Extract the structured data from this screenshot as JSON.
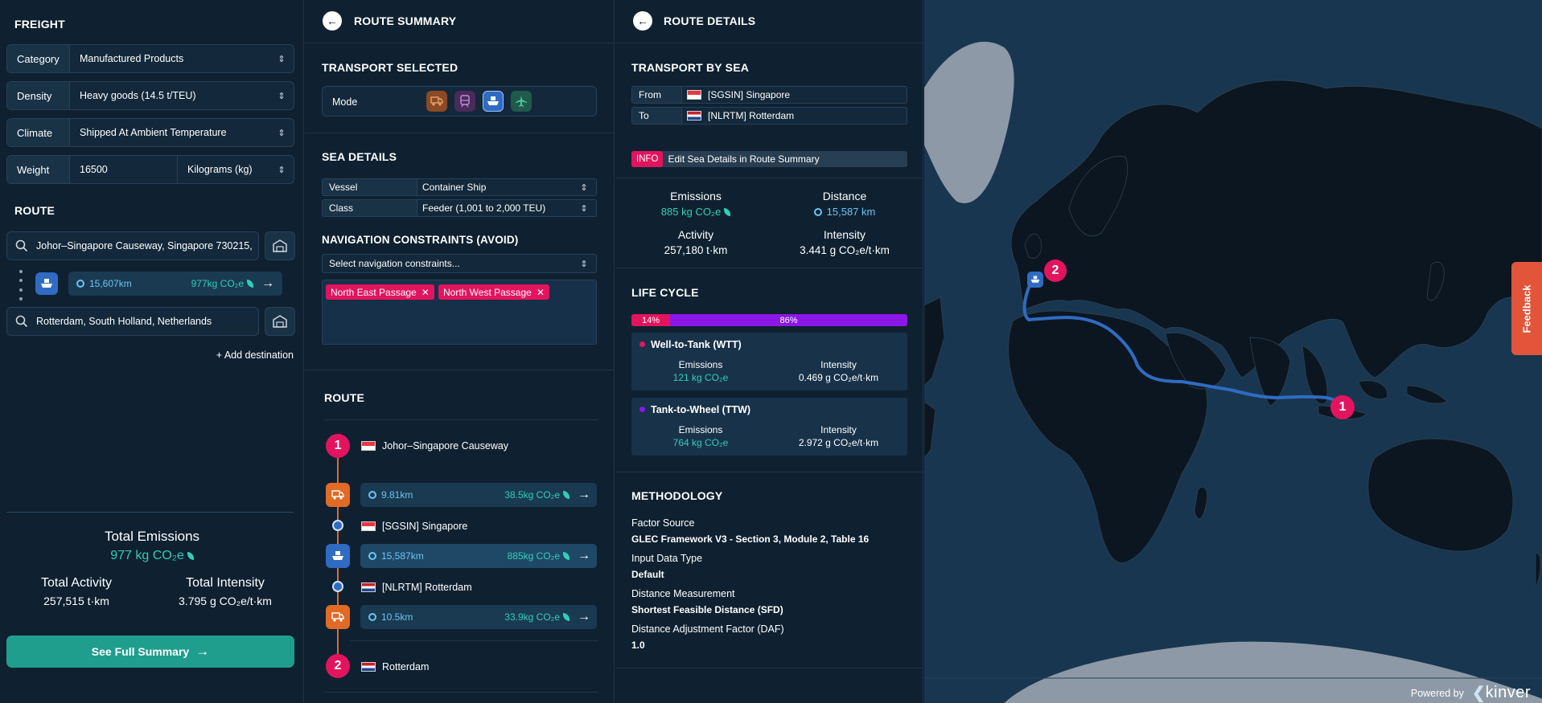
{
  "freight": {
    "title": "FREIGHT",
    "category_label": "Category",
    "category_value": "Manufactured Products",
    "density_label": "Density",
    "density_value": "Heavy goods (14.5 t/TEU)",
    "climate_label": "Climate",
    "climate_value": "Shipped At Ambient Temperature",
    "weight_label": "Weight",
    "weight_value": "16500",
    "weight_unit": "Kilograms (kg)"
  },
  "route": {
    "title": "ROUTE",
    "origin": "Johor–Singapore Causeway, Singapore 730215,",
    "leg_distance": "15,607km",
    "leg_emissions": "977kg CO₂e",
    "destination": "Rotterdam, South Holland, Netherlands",
    "add_destination": "+ Add destination"
  },
  "totals": {
    "title": "Total Emissions",
    "emissions": "977  kg CO₂e",
    "activity_label": "Total Activity",
    "activity_value": "257,515  t·km",
    "intensity_label": "Total Intensity",
    "intensity_value": "3.795  g CO₂e/t·km",
    "summary_button": "See Full Summary"
  },
  "route_summary": {
    "title": "ROUTE SUMMARY",
    "transport_title": "TRANSPORT SELECTED",
    "mode_label": "Mode",
    "sea_title": "SEA DETAILS",
    "vessel_label": "Vessel",
    "vessel_value": "Container Ship",
    "class_label": "Class",
    "class_value": "Feeder (1,001 to 2,000 TEU)",
    "nav_title": "NAVIGATION CONSTRAINTS (AVOID)",
    "nav_placeholder": "Select navigation constraints...",
    "tag1": "North East Passage",
    "tag2": "North West Passage",
    "route_title": "ROUTE",
    "stop1_num": "1",
    "stop1": "Johor–Singapore Causeway",
    "leg1_dist": "9.81km",
    "leg1_em": "38.5kg CO₂e",
    "stop_sg": "[SGSIN] Singapore",
    "leg2_dist": "15,587km",
    "leg2_em": "885kg CO₂e",
    "stop_nl": "[NLRTM] Rotterdam",
    "leg3_dist": "10.5km",
    "leg3_em": "33.9kg CO₂e",
    "stop2_num": "2",
    "stop2": "Rotterdam"
  },
  "route_details": {
    "title": "ROUTE DETAILS",
    "sea_title": "TRANSPORT BY SEA",
    "from_label": "From",
    "from_value": "[SGSIN] Singapore",
    "to_label": "To",
    "to_value": "[NLRTM] Rotterdam",
    "info_badge": "INFO",
    "info_text": "Edit Sea Details in Route Summary",
    "emissions_label": "Emissions",
    "emissions_value": "885 kg CO₂e",
    "distance_label": "Distance",
    "distance_value": "15,587 km",
    "activity_label": "Activity",
    "activity_value": "257,180 t·km",
    "intensity_label": "Intensity",
    "intensity_value": "3.441 g CO₂e/t·km",
    "lifecycle_title": "LIFE CYCLE",
    "wtt_pct": "14%",
    "ttw_pct": "86%",
    "wtt_share": 0.14,
    "wtt_title": "Well-to-Tank (WTT)",
    "wtt_em_label": "Emissions",
    "wtt_em": "121 kg CO₂e",
    "wtt_int_label": "Intensity",
    "wtt_int": "0.469 g CO₂e/t·km",
    "ttw_title": "Tank-to-Wheel (TTW)",
    "ttw_em_label": "Emissions",
    "ttw_em": "764 kg CO₂e",
    "ttw_int_label": "Intensity",
    "ttw_int": "2.972 g CO₂e/t·km",
    "method_title": "METHODOLOGY",
    "factor_label": "Factor Source",
    "factor_value": "GLEC Framework V3 - Section 3, Module 2, Table 16",
    "input_label": "Input Data Type",
    "input_value": "Default",
    "dist_meas_label": "Distance Measurement",
    "dist_meas_value": "Shortest Feasible Distance (SFD)",
    "daf_label": "Distance Adjustment Factor (DAF)",
    "daf_value": "1.0"
  },
  "map": {
    "marker1": "1",
    "marker2": "2",
    "feedback": "Feedback",
    "powered_by": "Powered by",
    "brand": "kinver"
  },
  "colors": {
    "accent_teal": "#1f9e8e",
    "pink": "#e3145e",
    "purple": "#8b17e6",
    "route_line": "#2f6bc2"
  }
}
